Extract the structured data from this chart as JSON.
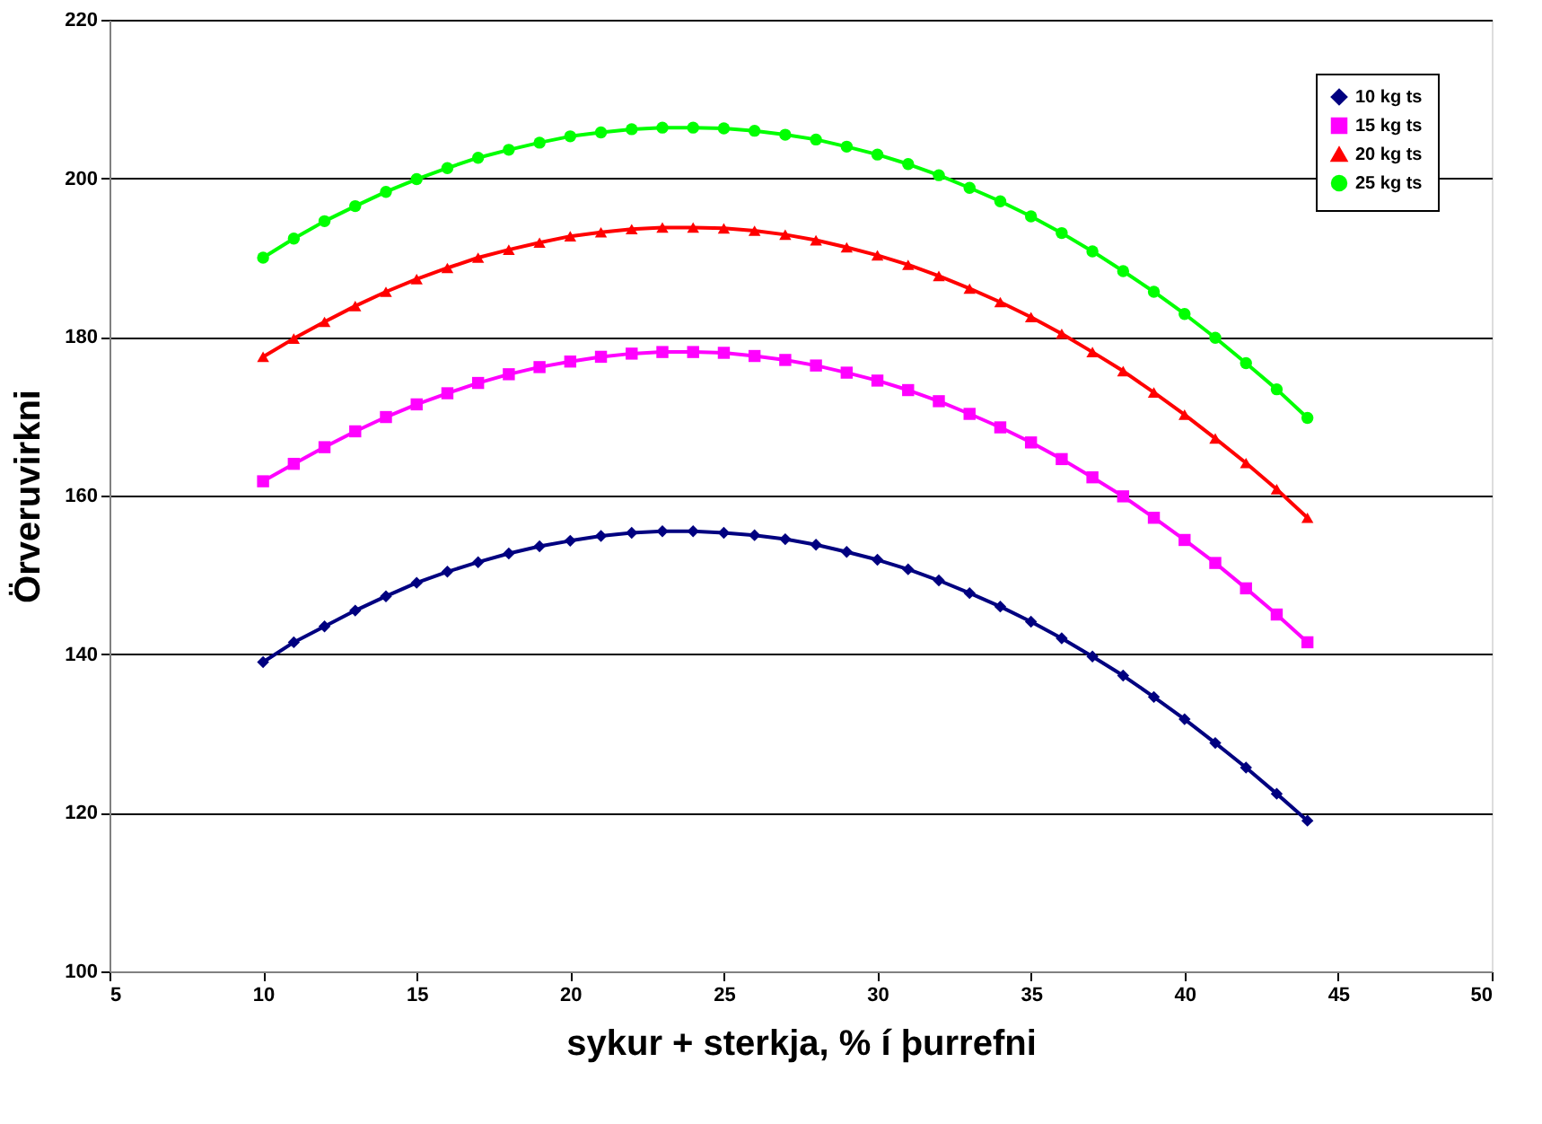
{
  "chart_data": {
    "type": "line",
    "xlabel": "sykur + sterkja, % í þurrefni",
    "ylabel": "Örveruvirkni",
    "x": [
      10,
      11,
      12,
      13,
      14,
      15,
      16,
      17,
      18,
      19,
      20,
      21,
      22,
      23,
      24,
      25,
      26,
      27,
      28,
      29,
      30,
      31,
      32,
      33,
      34,
      35,
      36,
      37,
      38,
      39,
      40,
      41,
      42,
      43,
      44
    ],
    "series": [
      {
        "name": "10 kg ts",
        "color": "#000080",
        "marker": "diamond",
        "values": [
          139,
          141.5,
          143.5,
          145.5,
          147.3,
          149,
          150.4,
          151.6,
          152.7,
          153.6,
          154.3,
          154.9,
          155.3,
          155.5,
          155.5,
          155.3,
          155,
          154.5,
          153.8,
          152.9,
          151.9,
          150.7,
          149.3,
          147.7,
          146,
          144.1,
          142,
          139.7,
          137.3,
          134.6,
          131.8,
          128.8,
          125.7,
          122.4,
          119
        ]
      },
      {
        "name": "15 kg ts",
        "color": "#ff00ff",
        "marker": "square",
        "values": [
          161.8,
          164,
          166.1,
          168.1,
          169.9,
          171.5,
          172.9,
          174.2,
          175.3,
          176.2,
          176.9,
          177.5,
          177.9,
          178.1,
          178.1,
          178,
          177.6,
          177.1,
          176.4,
          175.5,
          174.5,
          173.3,
          171.9,
          170.3,
          168.6,
          166.7,
          164.6,
          162.3,
          159.9,
          157.2,
          154.4,
          151.5,
          148.3,
          145,
          141.5
        ]
      },
      {
        "name": "20 kg ts",
        "color": "#ff0000",
        "marker": "triangle",
        "values": [
          177.5,
          179.8,
          181.9,
          183.9,
          185.7,
          187.3,
          188.7,
          190,
          191,
          191.9,
          192.7,
          193.2,
          193.6,
          193.8,
          193.8,
          193.7,
          193.4,
          192.9,
          192.2,
          191.3,
          190.3,
          189.1,
          187.7,
          186.1,
          184.4,
          182.5,
          180.4,
          178.1,
          175.7,
          173,
          170.2,
          167.2,
          164.1,
          160.8,
          157.2
        ]
      },
      {
        "name": "25 kg ts",
        "color": "#00ff00",
        "marker": "circle",
        "values": [
          190,
          192.4,
          194.6,
          196.5,
          198.3,
          199.9,
          201.3,
          202.6,
          203.6,
          204.5,
          205.3,
          205.8,
          206.2,
          206.4,
          206.4,
          206.3,
          206,
          205.5,
          204.9,
          204,
          203,
          201.8,
          200.4,
          198.8,
          197.1,
          195.2,
          193.1,
          190.8,
          188.3,
          185.7,
          182.9,
          179.9,
          176.7,
          173.4,
          169.8
        ]
      }
    ],
    "xlim": [
      5,
      50
    ],
    "xticks": [
      5,
      10,
      15,
      20,
      25,
      30,
      35,
      40,
      45,
      50
    ],
    "ylim": [
      100,
      220
    ],
    "yticks": [
      100,
      120,
      140,
      160,
      180,
      200,
      220
    ],
    "grid": "y",
    "legend": "top right",
    "line_style": "solid"
  }
}
